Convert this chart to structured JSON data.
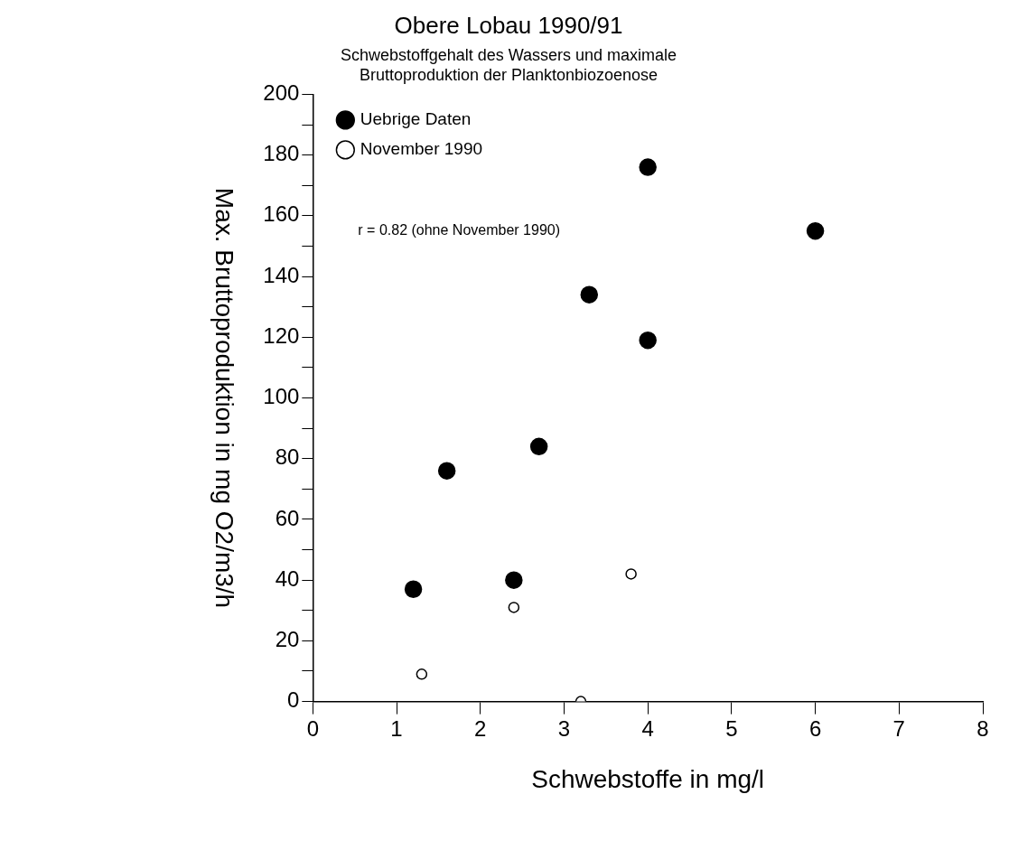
{
  "chart_data": {
    "type": "scatter",
    "title": "Obere Lobau 1990/91",
    "subtitle": "Schwebstoffgehalt des Wassers und maximale\nBruttoproduktion der Planktonbiozoenose",
    "xlabel": "Schwebstoffe in mg/l",
    "ylabel": "Max. Bruttoproduktion in mg O2/m3/h",
    "series": [
      {
        "name": "Uebrige Daten",
        "color": "#000000",
        "x": [
          1.2,
          1.6,
          2.4,
          2.7,
          3.3,
          4,
          4,
          6
        ],
        "values": [
          37,
          76,
          40,
          84,
          134,
          176,
          119,
          155
        ]
      },
      {
        "name": "November 1990",
        "color": "#000000",
        "x": [
          1.3,
          2.4,
          3.2,
          3.8
        ],
        "values": [
          9,
          31,
          0,
          42
        ]
      }
    ],
    "xlim": [
      0,
      8
    ],
    "xticks": [
      0,
      1,
      2,
      3,
      4,
      5,
      6,
      7,
      8
    ],
    "ylim": [
      0,
      200
    ],
    "yticks": [
      0,
      {
        "value": 10,
        "label": null
      },
      20,
      {
        "value": 30,
        "label": null
      },
      40,
      {
        "value": 50,
        "label": null
      },
      60,
      {
        "value": 70,
        "label": null
      },
      80,
      {
        "value": 90,
        "label": null
      },
      100,
      {
        "value": 110,
        "label": null
      },
      120,
      {
        "value": 130,
        "label": null
      },
      140,
      {
        "value": 150,
        "label": null
      },
      160,
      {
        "value": 170,
        "label": null
      },
      180,
      {
        "value": 190,
        "label": null
      },
      200
    ],
    "annotations": [
      "r = 0.82 (ohne November 1990)"
    ],
    "grid": false,
    "legend": "top left",
    "marker": "circle"
  }
}
